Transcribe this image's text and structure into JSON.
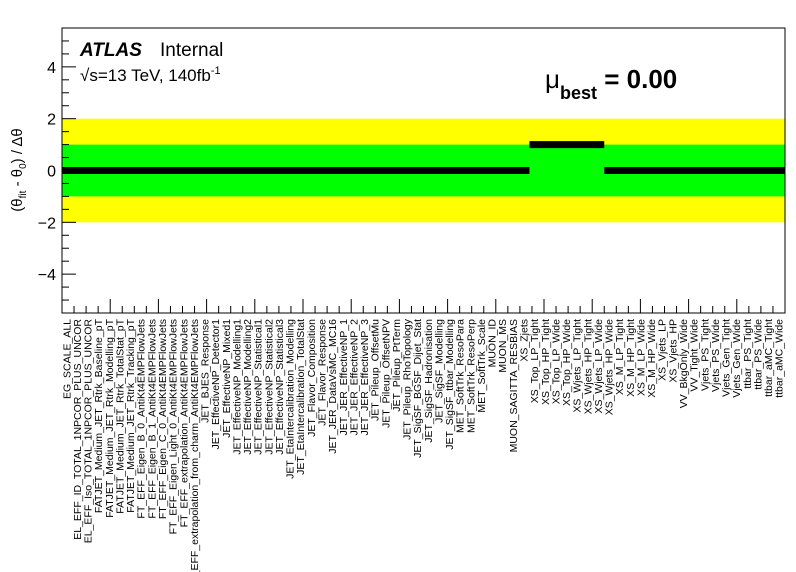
{
  "atlas_label": "ATLAS",
  "atlas_status": "Internal",
  "energy_label_prefix": "√s=13 TeV, 140fb",
  "energy_label_sup": "-1",
  "mu_symbol": "μ",
  "mu_subscript": "best",
  "mu_value_text": " = 0.00",
  "ylabel": {
    "theta": "θ",
    "fit": "fit",
    "zero": "0",
    "mid": " - ",
    "open": "(",
    "close": ") / Δθ"
  },
  "colors": {
    "band_2sigma": "#ffff00",
    "band_1sigma": "#00ff00",
    "marker": "#000000"
  },
  "chart_data": {
    "type": "scatter",
    "ylim": [
      -5.5,
      5.5
    ],
    "yticks": [
      -4,
      -2,
      0,
      2,
      4
    ],
    "bands": {
      "one_sigma": [
        -1,
        1
      ],
      "two_sigma": [
        -2,
        2
      ]
    },
    "nuisance_parameters": [
      "EG_SCALE_ALL",
      "EL_EFF_ID_TOTAL_1NPCOR_PLUS_UNCOR",
      "EL_EFF_Iso_TOTAL_1NPCOR_PLUS_UNCOR",
      "FATJET_Medium_JET_Rtrk_Baseline_pT",
      "FATJET_Medium_JET_Rtrk_Modelling_pT",
      "FATJET_Medium_JET_Rtrk_TotalStat_pT",
      "FATJET_Medium_JET_Rtrk_Tracking_pT",
      "FT_EFF_Eigen_B_0_AntiKt4EMPFlowJets",
      "FT_EFF_Eigen_B_1_AntiKt4EMPFlowJets",
      "FT_EFF_Eigen_C_0_AntiKt4EMPFlowJets",
      "FT_EFF_Eigen_Light_0_AntiKt4EMPFlowJets",
      "FT_EFF_extrapolation_AntiKt4EMPFlowJets",
      "FT_EFF_extrapolation_from_charm_AntiKt4EMPFlowJets",
      "JET_BJES_Response",
      "JET_EffectiveNP_Detector1",
      "JET_EffectiveNP_Mixed1",
      "JET_EffectiveNP_Modelling1",
      "JET_EffectiveNP_Modelling2",
      "JET_EffectiveNP_Statistical1",
      "JET_EffectiveNP_Statistical2",
      "JET_EffectiveNP_Statistical3",
      "JET_EtaIntercalibration_Modelling",
      "JET_EtaIntercalibration_TotalStat",
      "JET_Flavor_Composition",
      "JET_Flavor_Response",
      "JET_JER_DataVsMC_MC16",
      "JET_JER_EffectiveNP_1",
      "JET_JER_EffectiveNP_2",
      "JET_JER_EffectiveNP_3",
      "JET_Pileup_OffsetMu",
      "JET_Pileup_OffsetNPV",
      "JET_Pileup_PtTerm",
      "JET_Pileup_RhoTopology",
      "JET_SigSF_BGSF_Dijet_Stat",
      "JET_SigSF_Hadronisation",
      "JET_SigSF_Modelling",
      "JET_SigSF_ttbar_Modelling",
      "MET_SoftTrk_ResoPara",
      "MET_SoftTrk_ResoPerp",
      "MET_SoftTrk_Scale",
      "MUON_ID",
      "MUON_MS",
      "MUON_SAGITTA_RESBIAS",
      "XS_Zjets",
      "XS_Top_LP_Tight",
      "XS_Top_HP_Tight",
      "XS_Top_LP_Wide",
      "XS_Top_HP_Wide",
      "XS_Wjets_LP_Tight",
      "XS_Wjets_HP_Tight",
      "XS_Wjets_LP_Wide",
      "XS_Wjets_HP_Wide",
      "XS_M_LP_Tight",
      "XS_M_HP_Tight",
      "XS_M_LP_Wide",
      "XS_M_HP_Wide",
      "XS_Vjets_LP",
      "XS_Vjets_HP",
      "VV_BkgOnly_Wide",
      "VV_Tight_Wide",
      "Vjets_PS_Tight",
      "Vjets_PS_Wide",
      "Vjets_Gen_Tight",
      "Vjets_Gen_Wide",
      "ttbar_PS_Tight",
      "ttbar_PS_Wide",
      "ttbar_aMC_Tight",
      "ttbar_aMC_Wide"
    ],
    "segments": [
      {
        "x_start": 0,
        "x_end": 37.5,
        "y": 0.0
      },
      {
        "x_start": 37.5,
        "x_end": 43.5,
        "y": 1.0
      },
      {
        "x_start": 43.5,
        "x_end": 58.0,
        "y": 0.0
      }
    ],
    "x_range": [
      0,
      58
    ],
    "x_tick_count": 60,
    "x_major_every": 4
  }
}
